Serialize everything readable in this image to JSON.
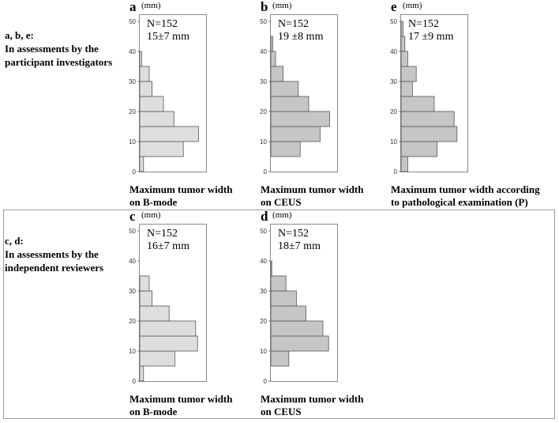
{
  "group_top": {
    "label_line1": "a, b, e:",
    "label_line2": "In assessments by the",
    "label_line3": "participant investigators"
  },
  "group_bottom": {
    "label_line1": "c, d:",
    "label_line2": "In assessments by the",
    "label_line3": "independent reviewers"
  },
  "colors": {
    "light_bar": "#dedede",
    "dark_bar": "#c6c6c6",
    "bar_stroke": "#555555",
    "frame": "#8a8a8a"
  },
  "chart_data": [
    {
      "id": "a",
      "type": "bar",
      "orientation": "horizontal",
      "letter": "a",
      "unit": "(mm)",
      "n_label": "N=152",
      "stat_label": "15±7 mm",
      "caption_line1": "Maximum tumor width",
      "caption_line2": "on B-mode",
      "ylim": [
        0,
        50
      ],
      "yticks": [
        0,
        10,
        20,
        30,
        40,
        50
      ],
      "bin_width": 5,
      "bins": [
        0,
        5,
        10,
        15,
        20,
        25,
        30,
        35,
        40,
        45
      ],
      "values": [
        4,
        46,
        62,
        36,
        25,
        13,
        10,
        2,
        0,
        0
      ],
      "xlim": [
        0,
        80
      ],
      "fill": "light"
    },
    {
      "id": "b",
      "type": "bar",
      "orientation": "horizontal",
      "letter": "b",
      "unit": "(mm)",
      "n_label": "N=152",
      "stat_label": "19 ±8 mm",
      "caption_line1": "Maximum tumor width",
      "caption_line2": "on CEUS",
      "ylim": [
        0,
        50
      ],
      "yticks": [
        0,
        10,
        20,
        30,
        40,
        50
      ],
      "bin_width": 5,
      "bins": [
        0,
        5,
        10,
        15,
        20,
        25,
        30,
        35,
        40,
        45
      ],
      "values": [
        0,
        31,
        52,
        62,
        40,
        29,
        13,
        5,
        2,
        0
      ],
      "xlim": [
        0,
        80
      ],
      "fill": "dark"
    },
    {
      "id": "e",
      "type": "bar",
      "orientation": "horizontal",
      "letter": "e",
      "unit": "(mm)",
      "n_label": "N=152",
      "stat_label": "17 ±9 mm",
      "caption_line1": "Maximum tumor width according",
      "caption_line2": "to pathological examination (P)",
      "ylim": [
        0,
        50
      ],
      "yticks": [
        0,
        10,
        20,
        30,
        40,
        50
      ],
      "bin_width": 5,
      "bins": [
        0,
        5,
        10,
        15,
        20,
        25,
        30,
        35,
        40,
        45
      ],
      "values": [
        7,
        38,
        59,
        56,
        35,
        12,
        16,
        7,
        4,
        2
      ],
      "xlim": [
        0,
        80
      ],
      "fill": "dark"
    },
    {
      "id": "c",
      "type": "bar",
      "orientation": "horizontal",
      "letter": "c",
      "unit": "(mm)",
      "n_label": "N=152",
      "stat_label": "16±7 mm",
      "caption_line1": "Maximum tumor width",
      "caption_line2": "on B-mode",
      "ylim": [
        0,
        50
      ],
      "yticks": [
        0,
        10,
        20,
        30,
        40,
        50
      ],
      "bin_width": 5,
      "bins": [
        0,
        5,
        10,
        15,
        20,
        25,
        30,
        35,
        40,
        45
      ],
      "values": [
        4,
        37,
        61,
        59,
        31,
        13,
        10,
        0,
        0,
        0
      ],
      "xlim": [
        0,
        80
      ],
      "fill": "light"
    },
    {
      "id": "d",
      "type": "bar",
      "orientation": "horizontal",
      "letter": "d",
      "unit": "(mm)",
      "n_label": "N=152",
      "stat_label": "18±7 mm",
      "caption_line1": "Maximum tumor width",
      "caption_line2": "on CEUS",
      "ylim": [
        0,
        50
      ],
      "yticks": [
        0,
        10,
        20,
        30,
        40,
        50
      ],
      "bin_width": 5,
      "bins": [
        0,
        5,
        10,
        15,
        20,
        25,
        30,
        35,
        40,
        45
      ],
      "values": [
        0,
        19,
        61,
        55,
        37,
        27,
        16,
        1,
        0,
        0
      ],
      "xlim": [
        0,
        80
      ],
      "fill": "dark"
    }
  ]
}
